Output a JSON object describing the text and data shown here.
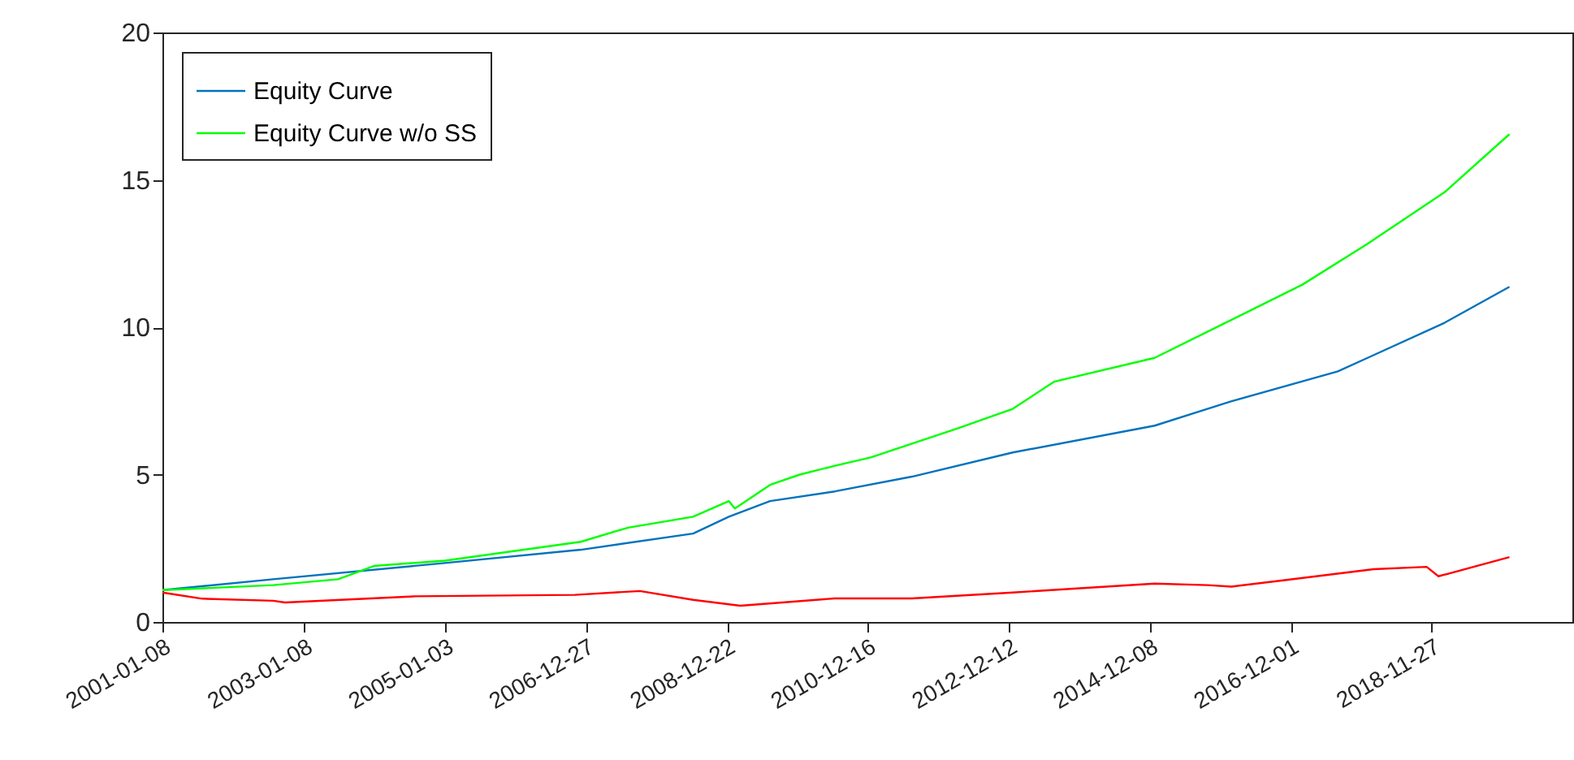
{
  "chart_data": {
    "type": "line",
    "xlim": [
      "2001-01-08",
      "2020-11-20"
    ],
    "ylim": [
      0,
      20
    ],
    "xticks": [
      "2001-01-08",
      "2003-01-08",
      "2005-01-03",
      "2006-12-27",
      "2008-12-22",
      "2010-12-16",
      "2012-12-12",
      "2014-12-08",
      "2016-12-01",
      "2018-11-27"
    ],
    "yticks": [
      0,
      5,
      10,
      15,
      20
    ],
    "grid": false,
    "legend": "top left",
    "line_style": "solid",
    "marker": "none",
    "series": [
      {
        "name": "Equity Curve",
        "color": "#0072bd",
        "x": [
          "2001-01-08",
          "2002-08",
          "2005-01",
          "2006-12",
          "2008-07",
          "2009-01",
          "2009-08",
          "2010-07",
          "2011-08",
          "2013-01",
          "2015-01",
          "2016-02",
          "2017-08",
          "2018-01",
          "2019-02",
          "2020-01"
        ],
        "values": [
          1.08,
          1.45,
          2.0,
          2.45,
          3.0,
          3.57,
          4.1,
          4.43,
          4.93,
          5.75,
          6.66,
          7.49,
          8.5,
          8.96,
          10.15,
          11.37
        ]
      },
      {
        "name": "Equity Curve w/o SS",
        "color": "#00ff00",
        "x": [
          "2001-01-08",
          "2002-08",
          "2003-07",
          "2004-01",
          "2005-01",
          "2006-12",
          "2007-08",
          "2008-07",
          "2009-01",
          "2009-02",
          "2009-08",
          "2010-01",
          "2010-07",
          "2011-01",
          "2012-04",
          "2013-01",
          "2013-08",
          "2015-01",
          "2016-02",
          "2017-02",
          "2018-01",
          "2019-02",
          "2020-01"
        ],
        "values": [
          1.08,
          1.25,
          1.45,
          1.9,
          2.08,
          2.72,
          3.2,
          3.57,
          4.1,
          3.85,
          4.65,
          5.0,
          5.3,
          5.58,
          6.59,
          7.23,
          8.15,
          8.96,
          10.25,
          11.45,
          12.83,
          14.58,
          16.55
        ]
      },
      {
        "color": "#ff0000",
        "x": [
          "2001-01-08",
          "2001-08",
          "2002-08",
          "2002-10",
          "2004-08",
          "2006-11",
          "2007-10",
          "2008-07",
          "2009-03",
          "2010-07",
          "2011-08",
          "2013-01",
          "2015-01",
          "2015-10",
          "2016-02",
          "2016-11",
          "2018-02",
          "2018-11",
          "2019-01",
          "2020-01"
        ],
        "values": [
          1.0,
          0.79,
          0.72,
          0.66,
          0.87,
          0.92,
          1.05,
          0.75,
          0.55,
          0.8,
          0.8,
          1.0,
          1.3,
          1.25,
          1.2,
          1.42,
          1.79,
          1.87,
          1.55,
          2.2
        ]
      }
    ]
  }
}
